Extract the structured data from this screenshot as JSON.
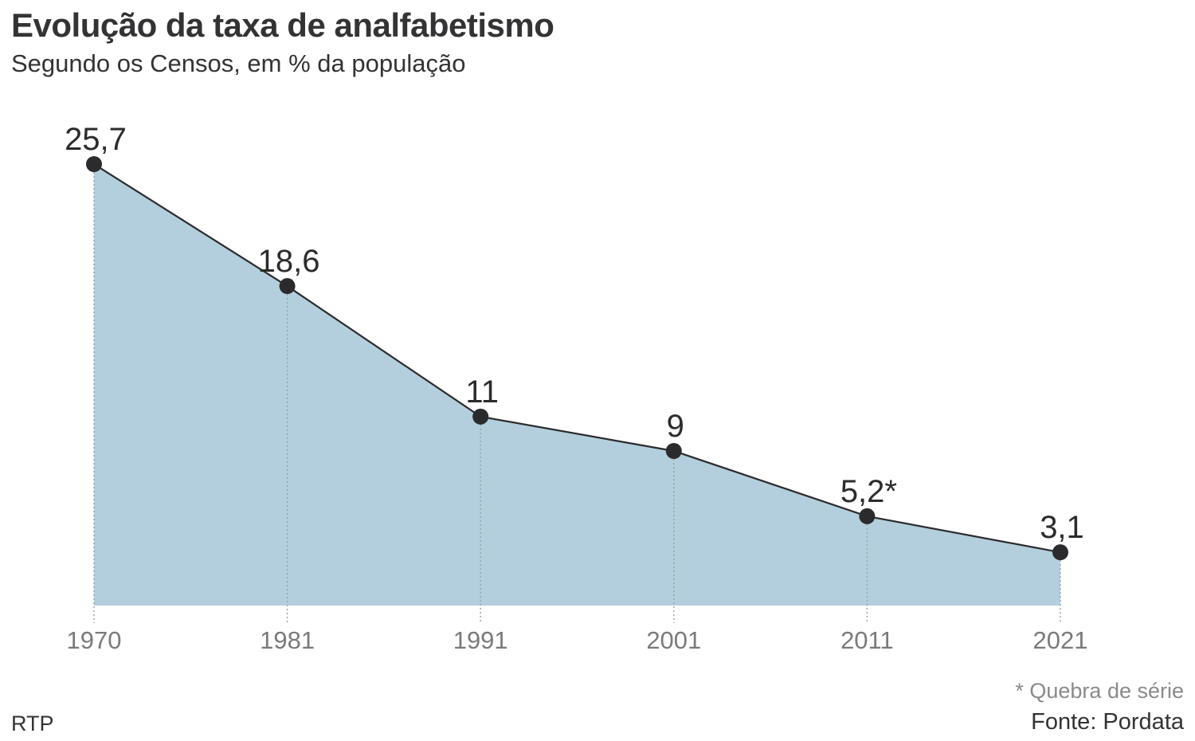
{
  "chart_data": {
    "type": "area",
    "title": "Evolução da taxa de analfabetismo",
    "subtitle": "Segundo os Censos, em % da população",
    "xlabel": "",
    "ylabel": "",
    "categories": [
      "1970",
      "1981",
      "1991",
      "2001",
      "2011",
      "2021"
    ],
    "x": [
      1970,
      1981,
      1991,
      2001,
      2011,
      2021
    ],
    "values": [
      25.7,
      18.6,
      11,
      9,
      5.2,
      3.1
    ],
    "data_labels": [
      "25,7",
      "18,6",
      "11",
      "9",
      "5,2*",
      "3,1"
    ],
    "ylim": [
      0,
      25.7
    ],
    "grid": false,
    "legend": "none",
    "note": "* Quebra de série",
    "source": "Fonte: Pordata",
    "credit": "RTP",
    "colors": {
      "area_fill": "#b3cfdd",
      "line": "#2b2b2d",
      "marker": "#2b2b2d",
      "tick_label": "#7a7a7a",
      "dotted_guide": "#9aa5ad"
    }
  }
}
